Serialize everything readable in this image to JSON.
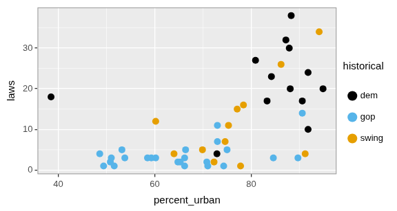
{
  "chart_data": {
    "type": "scatter",
    "x_label": "percent_urban",
    "y_label": "laws",
    "legend_title": "historical",
    "legend": "right",
    "grid": true,
    "xlim": [
      35.7,
      97.7
    ],
    "xticks": [
      40,
      60,
      80
    ],
    "ylim": [
      -1,
      40
    ],
    "yticks": [
      0,
      10,
      20,
      30
    ],
    "series": [
      {
        "name": "dem",
        "color": "#000000",
        "x": [
          38.5,
          88.3,
          87.2,
          87.9,
          80.9,
          84.2,
          91.8,
          88.1,
          94.9,
          90.6,
          83.3,
          91.8,
          72.9
        ],
        "values": [
          18,
          38,
          32,
          30,
          27,
          23,
          24,
          20,
          20,
          17,
          17,
          10,
          4
        ]
      },
      {
        "name": "gop",
        "color": "#56B4E9",
        "x": [
          48.6,
          49.4,
          50.8,
          51.0,
          51.6,
          53.2,
          53.8,
          58.5,
          59.3,
          60.2,
          64.8,
          65.3,
          66.4,
          66.2,
          66.2,
          71.0,
          70.8,
          73.0,
          73.0,
          74.3,
          75.0,
          84.6,
          89.7,
          90.6
        ],
        "values": [
          4,
          1,
          2,
          3,
          1,
          5,
          3,
          3,
          3,
          3,
          2,
          2,
          5,
          3,
          1,
          1,
          2,
          11,
          7,
          1,
          5,
          3,
          3,
          14
        ]
      },
      {
        "name": "swing",
        "color": "#E69F00",
        "x": [
          60.2,
          64.0,
          69.9,
          72.3,
          74.6,
          75.3,
          77.1,
          78.4,
          77.8,
          86.2,
          91.2,
          94.1
        ],
        "values": [
          12,
          4,
          5,
          2,
          7,
          11,
          15,
          16,
          1,
          26,
          4,
          34
        ]
      }
    ]
  }
}
